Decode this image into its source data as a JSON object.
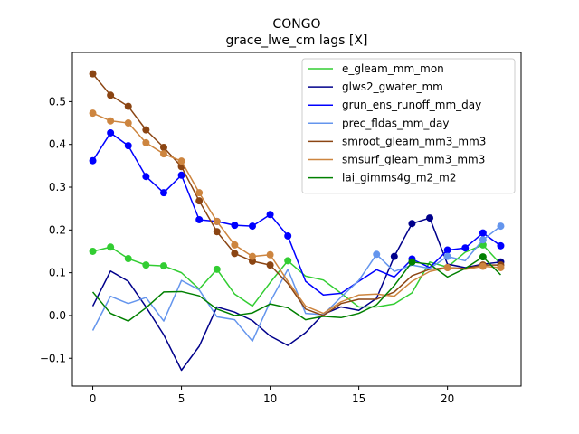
{
  "chart_data": {
    "type": "line",
    "title": "CONGO",
    "subtitle": "grace_lwe_cm lags [X]",
    "xlim": [
      -1.15,
      24.15
    ],
    "ylim": [
      -0.165,
      0.615
    ],
    "xticks": [
      0,
      5,
      10,
      15,
      20
    ],
    "yticks": [
      -0.1,
      0.0,
      0.1,
      0.2,
      0.3,
      0.4,
      0.5
    ],
    "ytick_labels": [
      "−0.1",
      "0.0",
      "0.1",
      "0.2",
      "0.3",
      "0.4",
      "0.5"
    ],
    "legend_position": "top-right",
    "series": [
      {
        "name": "e_gleam_mm_mon",
        "color": "#32cd32",
        "values": [
          0.15,
          0.16,
          0.133,
          0.118,
          0.116,
          0.1,
          0.062,
          0.108,
          0.05,
          0.022,
          0.077,
          0.128,
          0.092,
          0.083,
          0.052,
          0.02,
          0.02,
          0.027,
          0.053,
          0.125,
          0.113,
          0.148,
          0.165,
          0.12
        ],
        "markers": [
          0,
          1,
          2,
          3,
          4,
          7,
          11,
          22
        ]
      },
      {
        "name": "glws2_gwater_mm",
        "color": "#00008b",
        "values": [
          0.022,
          0.104,
          0.08,
          0.02,
          -0.045,
          -0.128,
          -0.072,
          0.02,
          0.008,
          -0.012,
          -0.048,
          -0.07,
          -0.04,
          0.003,
          0.02,
          0.012,
          0.04,
          0.138,
          0.215,
          0.228,
          0.12,
          0.112,
          0.12,
          0.125
        ],
        "markers": [
          17,
          18,
          19,
          23
        ]
      },
      {
        "name": "grun_ens_runoff_mm_day",
        "color": "#0000ff",
        "values": [
          0.362,
          0.427,
          0.397,
          0.325,
          0.287,
          0.328,
          0.224,
          0.22,
          0.211,
          0.209,
          0.236,
          0.186,
          0.08,
          0.048,
          0.052,
          0.08,
          0.107,
          0.09,
          0.132,
          0.112,
          0.153,
          0.158,
          0.193,
          0.163
        ],
        "markers": [
          0,
          1,
          2,
          3,
          4,
          5,
          6,
          7,
          8,
          9,
          10,
          11,
          18,
          20,
          21,
          22,
          23
        ]
      },
      {
        "name": "prec_fldas_mm_day",
        "color": "#6495ed",
        "values": [
          -0.035,
          0.045,
          0.028,
          0.042,
          -0.013,
          0.082,
          0.06,
          -0.003,
          -0.01,
          -0.06,
          0.032,
          0.108,
          0.005,
          0.002,
          0.043,
          0.082,
          0.143,
          0.103,
          0.118,
          0.11,
          0.138,
          0.128,
          0.177,
          0.209
        ],
        "markers": [
          16,
          20,
          22,
          23
        ]
      },
      {
        "name": "smroot_gleam_mm3_mm3",
        "color": "#8b4513",
        "values": [
          0.565,
          0.515,
          0.489,
          0.434,
          0.393,
          0.348,
          0.268,
          0.196,
          0.145,
          0.127,
          0.118,
          0.075,
          0.015,
          0.0,
          0.028,
          0.038,
          0.038,
          0.055,
          0.093,
          0.108,
          0.112,
          0.11,
          0.118,
          0.118
        ],
        "markers": [
          0,
          1,
          2,
          3,
          4,
          5,
          6,
          7,
          8,
          9,
          10,
          20,
          22,
          23
        ]
      },
      {
        "name": "smsurf_gleam_mm3_mm3",
        "color": "#cd853f",
        "values": [
          0.473,
          0.455,
          0.45,
          0.404,
          0.378,
          0.361,
          0.287,
          0.22,
          0.165,
          0.138,
          0.142,
          0.08,
          0.022,
          0.005,
          0.032,
          0.048,
          0.05,
          0.045,
          0.08,
          0.103,
          0.112,
          0.108,
          0.115,
          0.112
        ],
        "markers": [
          0,
          1,
          2,
          3,
          4,
          5,
          6,
          7,
          8,
          9,
          10,
          20,
          22,
          23
        ]
      },
      {
        "name": "lai_gimms4g_m2_m2",
        "color": "#008000",
        "values": [
          0.055,
          0.005,
          -0.013,
          0.018,
          0.055,
          0.056,
          0.046,
          0.015,
          0.0,
          0.006,
          0.027,
          0.018,
          -0.01,
          -0.002,
          -0.005,
          0.005,
          0.025,
          0.07,
          0.125,
          0.12,
          0.09,
          0.11,
          0.137,
          0.095
        ],
        "markers": [
          18,
          22
        ]
      }
    ]
  }
}
